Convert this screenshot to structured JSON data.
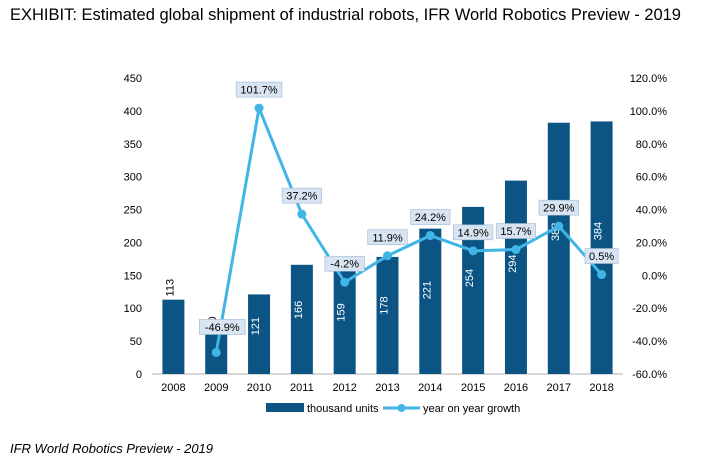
{
  "header": {
    "title": "EXHIBIT: Estimated global shipment of industrial robots, IFR World Robotics Preview - 2019"
  },
  "footer": {
    "source": "IFR World Robotics Preview  - 2019"
  },
  "colors": {
    "bar": "#0b5484",
    "line": "#41b6e6",
    "label_box": "#d8e4f2"
  },
  "chart_data": {
    "type": "bar",
    "categories": [
      "2008",
      "2009",
      "2010",
      "2011",
      "2012",
      "2013",
      "2014",
      "2015",
      "2016",
      "2017",
      "2018"
    ],
    "series": [
      {
        "name": "thousand units",
        "type": "bar",
        "axis": "left",
        "values": [
          113,
          60,
          121,
          166,
          159,
          178,
          221,
          254,
          294,
          382,
          384
        ],
        "labels": [
          "113",
          "60",
          "121",
          "166",
          "159",
          "178",
          "221",
          "254",
          "294",
          "382",
          "384"
        ]
      },
      {
        "name": "year on year growth",
        "type": "line",
        "axis": "right",
        "values": [
          null,
          -46.9,
          101.7,
          37.2,
          -4.2,
          11.9,
          24.2,
          14.9,
          15.7,
          29.9,
          0.5
        ],
        "labels": [
          "",
          "-46.9%",
          "101.7%",
          "37.2%",
          "-4.2%",
          "11.9%",
          "24.2%",
          "14.9%",
          "15.7%",
          "29.9%",
          "0.5%"
        ]
      }
    ],
    "y_left": {
      "ylim": [
        0,
        450
      ],
      "ticks": [
        0,
        50,
        100,
        150,
        200,
        250,
        300,
        350,
        400,
        450
      ],
      "tick_labels": [
        "0",
        "50",
        "100",
        "150",
        "200",
        "250",
        "300",
        "350",
        "400",
        "450"
      ]
    },
    "y_right": {
      "ylim": [
        -60,
        120
      ],
      "ticks": [
        -60,
        -40,
        -20,
        0,
        20,
        40,
        60,
        80,
        100,
        120
      ],
      "tick_labels": [
        "-60.0%",
        "-40.0%",
        "-20.0%",
        "0.0%",
        "20.0%",
        "40.0%",
        "60.0%",
        "80.0%",
        "100.0%",
        "120.0%"
      ]
    },
    "grid": false,
    "legend_position": "bottom"
  }
}
